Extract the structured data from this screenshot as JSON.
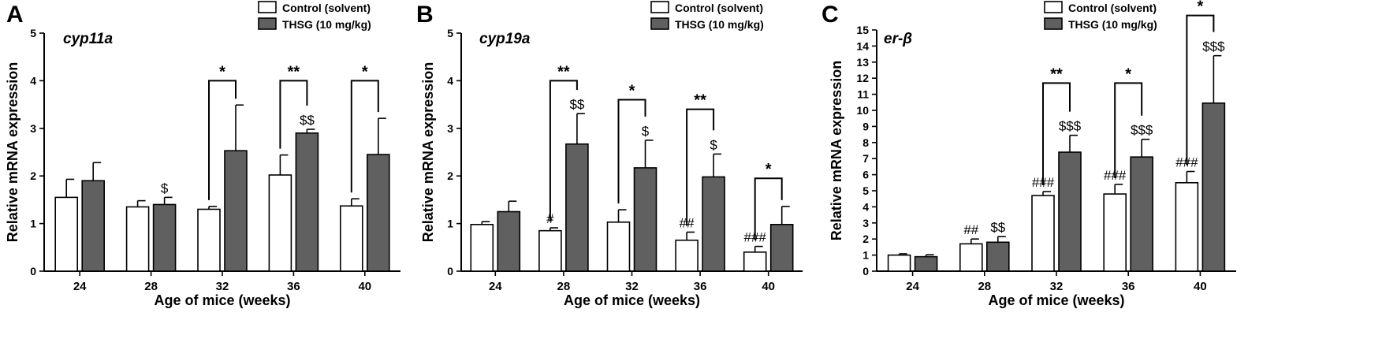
{
  "colors": {
    "control_fill": "#ffffff",
    "thsg_fill": "#606060",
    "stroke": "#000000"
  },
  "chart_data": [
    {
      "type": "bar",
      "panel_label": "A",
      "title": "cyp11a",
      "xlabel": "Age of mice (weeks)",
      "ylabel": "Relative mRNA expression",
      "ylim": [
        0,
        5
      ],
      "yticks": [
        "0",
        "1",
        "2",
        "3",
        "4",
        "5"
      ],
      "categories": [
        "24",
        "28",
        "32",
        "36",
        "40"
      ],
      "legend_position": "top-right",
      "series": [
        {
          "name": "Control (solvent)",
          "values": [
            1.55,
            1.35,
            1.3,
            2.02,
            1.37
          ],
          "errors": [
            0.38,
            0.13,
            0.06,
            0.42,
            0.15
          ],
          "labels": [
            "",
            "",
            "",
            "",
            ""
          ]
        },
        {
          "name": "THSG (10 mg/kg)",
          "values": [
            1.9,
            1.4,
            2.53,
            2.9,
            2.45
          ],
          "errors": [
            0.38,
            0.15,
            0.96,
            0.08,
            0.76
          ],
          "labels": [
            "",
            "$",
            "",
            "$$",
            ""
          ]
        }
      ],
      "brackets": [
        {
          "category": "32",
          "label": "*",
          "height": 4.0
        },
        {
          "category": "36",
          "label": "**",
          "height": 4.0
        },
        {
          "category": "40",
          "label": "*",
          "height": 4.0
        }
      ]
    },
    {
      "type": "bar",
      "panel_label": "B",
      "title": "cyp19a",
      "xlabel": "Age of mice (weeks)",
      "ylabel": "Relative mRNA expression",
      "ylim": [
        0,
        5
      ],
      "yticks": [
        "0",
        "1",
        "2",
        "3",
        "4",
        "5"
      ],
      "categories": [
        "24",
        "28",
        "32",
        "36",
        "40"
      ],
      "legend_position": "top-right",
      "series": [
        {
          "name": "Control (solvent)",
          "values": [
            0.98,
            0.85,
            1.03,
            0.65,
            0.4
          ],
          "errors": [
            0.06,
            0.06,
            0.26,
            0.17,
            0.12
          ],
          "labels": [
            "",
            "#",
            "",
            "##",
            "###"
          ]
        },
        {
          "name": "THSG (10 mg/kg)",
          "values": [
            1.25,
            2.67,
            2.17,
            1.98,
            0.98
          ],
          "errors": [
            0.22,
            0.64,
            0.58,
            0.48,
            0.38
          ],
          "labels": [
            "",
            "$$",
            "$",
            "$",
            ""
          ]
        }
      ],
      "brackets": [
        {
          "category": "28",
          "label": "**",
          "height": 4.0
        },
        {
          "category": "32",
          "label": "*",
          "height": 3.6
        },
        {
          "category": "36",
          "label": "**",
          "height": 3.4
        },
        {
          "category": "40",
          "label": "*",
          "height": 1.95
        }
      ]
    },
    {
      "type": "bar",
      "panel_label": "C",
      "title": "er-β",
      "xlabel": "Age of mice (weeks)",
      "ylabel": "Relative mRNA expression",
      "ylim": [
        0,
        15
      ],
      "yticks": [
        "0",
        "1",
        "2",
        "3",
        "4",
        "5",
        "6",
        "7",
        "8",
        "9",
        "10",
        "11",
        "12",
        "13",
        "14",
        "15"
      ],
      "categories": [
        "24",
        "28",
        "32",
        "36",
        "40"
      ],
      "legend_position": "top-right",
      "series": [
        {
          "name": "Control (solvent)",
          "values": [
            1.0,
            1.7,
            4.7,
            4.8,
            5.5
          ],
          "errors": [
            0.08,
            0.3,
            0.25,
            0.6,
            0.7
          ],
          "labels": [
            "",
            "##",
            "###",
            "###",
            "###"
          ]
        },
        {
          "name": "THSG (10 mg/kg)",
          "values": [
            0.9,
            1.8,
            7.4,
            7.1,
            10.45
          ],
          "errors": [
            0.12,
            0.35,
            1.05,
            1.1,
            2.95
          ],
          "labels": [
            "",
            "$$",
            "$$$",
            "$$$",
            "$$$"
          ]
        }
      ],
      "brackets": [
        {
          "category": "32",
          "label": "**",
          "height": 11.7
        },
        {
          "category": "36",
          "label": "*",
          "height": 11.7
        },
        {
          "category": "40",
          "label": "*",
          "height": 15.9
        }
      ]
    }
  ]
}
